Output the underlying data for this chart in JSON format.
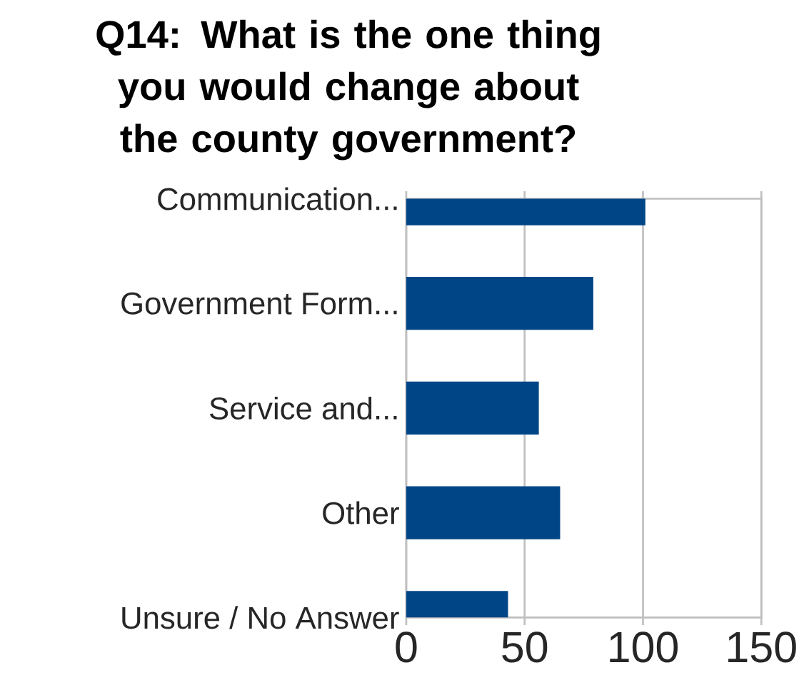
{
  "chart_data": {
    "type": "bar",
    "orientation": "horizontal",
    "title": "Q14: What is the one thing you would change about the county government?",
    "categories": [
      "Communication...",
      "Government Form...",
      "Service and...",
      "Other",
      "Unsure / No Answer"
    ],
    "values": [
      101,
      79,
      56,
      65,
      43
    ],
    "color": "#004586",
    "xlim": [
      0,
      150
    ],
    "xticks": [
      0,
      50,
      100,
      150
    ],
    "grid": "x"
  }
}
